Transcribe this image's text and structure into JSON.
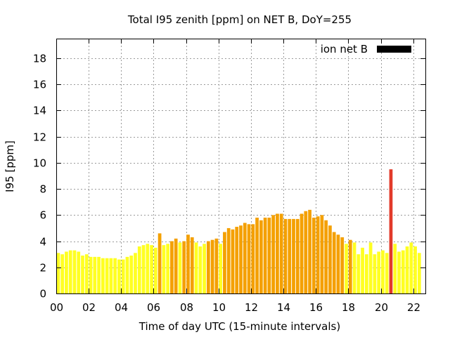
{
  "chart_data": {
    "type": "bar",
    "title": "Total I95 zenith [ppm] on NET B, DoY=255",
    "xlabel": "Time of day UTC (15-minute intervals)",
    "ylabel": "I95 [ppm]",
    "ylim": [
      0,
      19.5
    ],
    "xlim": [
      0,
      22.75
    ],
    "yticks": [
      0,
      2,
      4,
      6,
      8,
      10,
      12,
      14,
      16,
      18
    ],
    "xticks": [
      "00",
      "02",
      "04",
      "06",
      "08",
      "10",
      "12",
      "14",
      "16",
      "18",
      "20",
      "22"
    ],
    "grid": true,
    "legend": {
      "position": "top-right",
      "label": "ion net B",
      "color": "#000000"
    },
    "colors": {
      "low": "#ffff22",
      "medium": "#f4a000",
      "high": "#e23a2a"
    },
    "bar_interval_hours": 0.25,
    "values": [
      3.1,
      3.0,
      3.2,
      3.3,
      3.3,
      3.2,
      2.9,
      3.0,
      2.8,
      2.8,
      2.8,
      2.7,
      2.7,
      2.7,
      2.7,
      2.6,
      2.6,
      2.8,
      2.9,
      3.1,
      3.6,
      3.7,
      3.8,
      3.7,
      3.5,
      4.6,
      3.7,
      3.8,
      4.0,
      4.2,
      3.9,
      4.0,
      4.5,
      4.3,
      3.9,
      3.6,
      3.8,
      4.0,
      4.1,
      4.2,
      3.8,
      4.7,
      5.0,
      4.9,
      5.1,
      5.2,
      5.4,
      5.3,
      5.3,
      5.8,
      5.6,
      5.8,
      5.8,
      6.0,
      6.1,
      6.1,
      5.7,
      5.7,
      5.7,
      5.7,
      6.1,
      6.3,
      6.4,
      5.8,
      5.9,
      6.0,
      5.6,
      5.2,
      4.7,
      4.5,
      4.3,
      3.8,
      4.1,
      3.9,
      3.0,
      3.5,
      3.0,
      3.9,
      3.0,
      3.2,
      3.3,
      3.1,
      9.5,
      3.8,
      3.2,
      3.3,
      3.6,
      3.9,
      3.6,
      3.1
    ]
  }
}
